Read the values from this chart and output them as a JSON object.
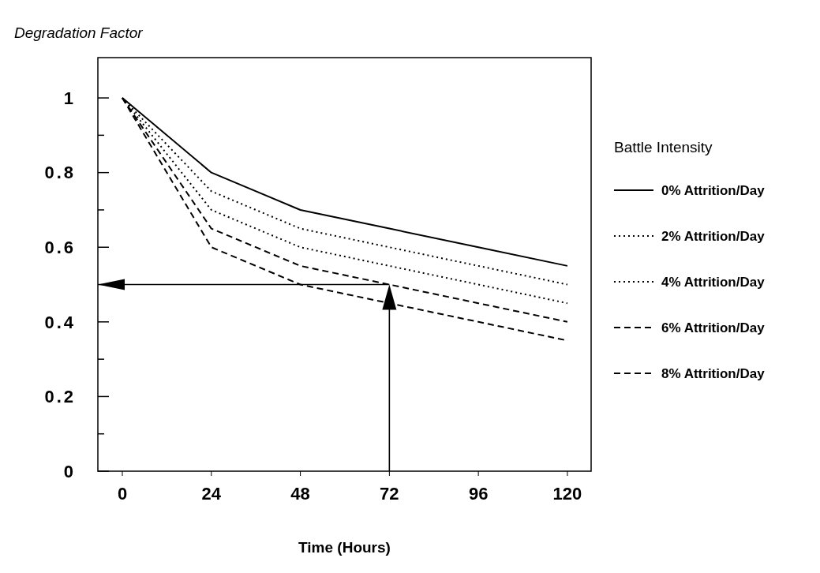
{
  "chart_data": {
    "type": "line",
    "ylabel": "Degradation Factor",
    "xlabel": "Time (Hours)",
    "legend_title": "Battle Intensity",
    "x": [
      0,
      24,
      48,
      72,
      96,
      120
    ],
    "series": [
      {
        "name": "0% Attrition/Day",
        "color": "#000000",
        "line_style": "solid",
        "values": [
          1,
          0.8,
          0.7,
          0.65,
          0.6,
          0.55
        ]
      },
      {
        "name": "2% Attrition/Day",
        "color": "#000000",
        "line_style": "dotted",
        "values": [
          1,
          0.75,
          0.65,
          0.6,
          0.55,
          0.5
        ]
      },
      {
        "name": "4% Attrition/Day",
        "color": "#000000",
        "line_style": "dotted",
        "values": [
          1,
          0.7,
          0.6,
          0.55,
          0.5,
          0.45
        ]
      },
      {
        "name": "6% Attrition/Day",
        "color": "#000000",
        "line_style": "dashed",
        "values": [
          1,
          0.65,
          0.55,
          0.5,
          0.45,
          0.4
        ]
      },
      {
        "name": "8% Attrition/Day",
        "color": "#000000",
        "line_style": "dashed",
        "values": [
          1,
          0.6,
          0.5,
          0.45,
          0.4,
          0.35
        ]
      }
    ],
    "xlim": [
      -6.6,
      126.4
    ],
    "ylim": [
      0,
      1.108
    ],
    "xticks": [
      0,
      24,
      48,
      72,
      96,
      120
    ],
    "yticks": [
      0,
      {
        "value": 0.1,
        "label": null
      },
      {
        "value": 0.2,
        "label": "0.2"
      },
      {
        "value": 0.3,
        "label": null
      },
      {
        "value": 0.4,
        "label": "0.4"
      },
      {
        "value": 0.5,
        "label": null
      },
      {
        "value": 0.6,
        "label": "0.6"
      },
      {
        "value": 0.7,
        "label": null
      },
      {
        "value": 0.8,
        "label": "0.8"
      },
      {
        "value": 0.9,
        "label": null
      },
      1
    ],
    "legend": "right",
    "marker": "none",
    "grid": false
  }
}
